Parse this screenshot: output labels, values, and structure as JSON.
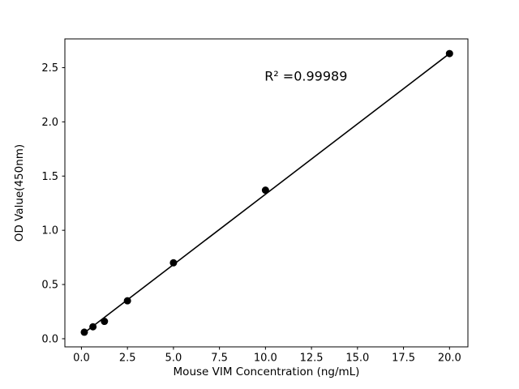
{
  "chart_data": {
    "type": "scatter",
    "title": "",
    "xlabel": "Mouse VIM Concentration (ng/mL)",
    "ylabel": "OD Value(450nm)",
    "x": [
      0.156,
      0.625,
      1.25,
      2.5,
      5.0,
      10.0,
      20.0
    ],
    "y": [
      0.06,
      0.11,
      0.16,
      0.35,
      0.7,
      1.37,
      2.63
    ],
    "fit_line": {
      "x": [
        0.156,
        20.0
      ],
      "y": [
        0.055,
        2.63
      ]
    },
    "annotation": {
      "text": "R² =0.99989",
      "x": 12.2,
      "y": 2.38
    },
    "xticks": [
      0.0,
      2.5,
      5.0,
      7.5,
      10.0,
      12.5,
      15.0,
      17.5,
      20.0
    ],
    "yticks": [
      0.0,
      0.5,
      1.0,
      1.5,
      2.0,
      2.5
    ],
    "xlim": [
      -0.9,
      21.0
    ],
    "ylim": [
      -0.075,
      2.765
    ],
    "grid": false,
    "legend": null,
    "marker_color": "#000000",
    "line_color": "#000000",
    "background_color": "#ffffff"
  }
}
